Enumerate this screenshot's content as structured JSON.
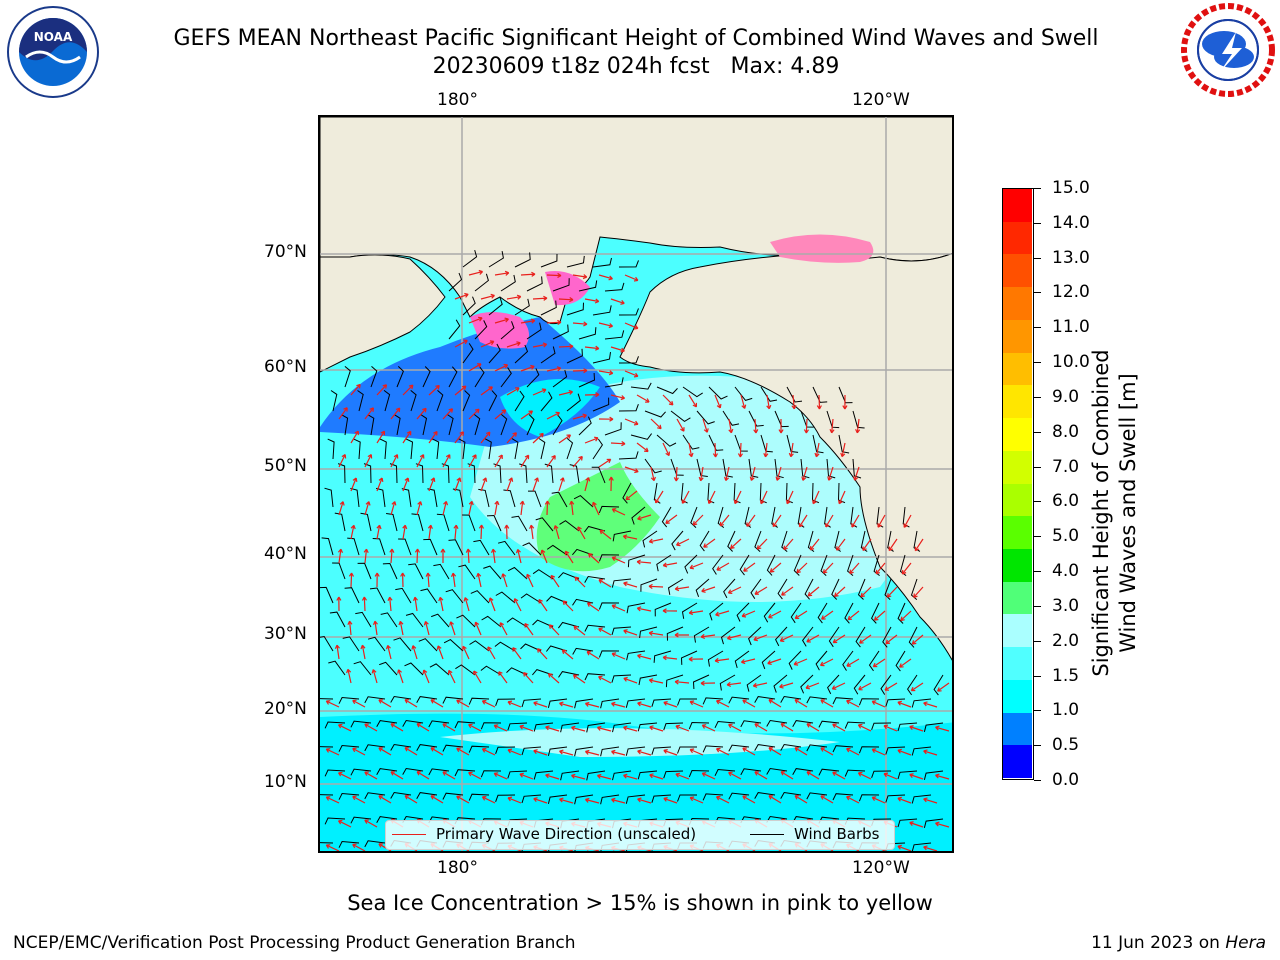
{
  "header": {
    "title_line1": "GEFS MEAN Northeast Pacific Significant Height of Combined Wind Waves and Swell",
    "title_line2": "20230609 t18z 024h fcst   Max: 4.89"
  },
  "logos": {
    "left": {
      "icon": "noaa-logo-icon",
      "text": "NOAA"
    },
    "right": {
      "icon": "nws-logo-icon"
    }
  },
  "map": {
    "lon_labels_top": [
      "180°",
      "120°W"
    ],
    "lon_labels_bottom": [
      "180°",
      "120°W"
    ],
    "lat_labels": [
      "70°N",
      "60°N",
      "50°N",
      "40°N",
      "30°N",
      "20°N",
      "10°N"
    ],
    "land_color": "#efecdc",
    "ocean_colors": [
      "#1f7bff",
      "#00f0ff",
      "#4cffff",
      "#adfdfd",
      "#5fff7a"
    ],
    "legend": {
      "wave_direction": "Primary Wave Direction (unscaled)",
      "wind_barbs": "Wind Barbs",
      "wave_color": "#e8201c",
      "barb_color": "#000000"
    }
  },
  "colorbar": {
    "label_line1": "Significant Height of Combined",
    "label_line2": "Wind Waves and Swell [m]",
    "ticks": [
      "15.0",
      "14.0",
      "13.0",
      "12.0",
      "11.0",
      "10.0",
      "9.0",
      "8.0",
      "7.0",
      "6.0",
      "5.0",
      "4.0",
      "3.0",
      "2.0",
      "1.5",
      "1.0",
      "0.5",
      "0.0"
    ],
    "colors_top_to_bottom": [
      "#ff0000",
      "#ff2800",
      "#ff5000",
      "#ff7800",
      "#ff9600",
      "#ffbe00",
      "#ffe600",
      "#ffff00",
      "#d2ff00",
      "#aaff00",
      "#5aff00",
      "#00e600",
      "#50ff78",
      "#aaffff",
      "#50ffff",
      "#00ffff",
      "#0080ff",
      "#0000ff"
    ]
  },
  "caption": "Sea Ice Concentration > 15% is shown in pink to yellow",
  "footer": {
    "left": "NCEP/EMC/Verification Post Processing Product Generation Branch",
    "right_prefix": "11 Jun 2023 on ",
    "right_host": "Hera"
  }
}
